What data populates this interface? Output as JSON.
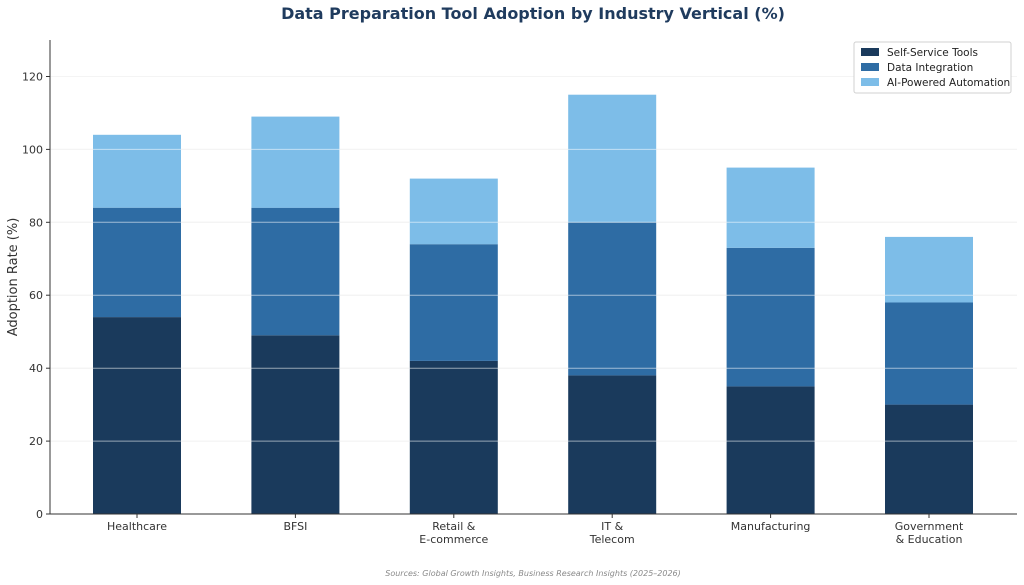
{
  "chart_data": {
    "type": "bar",
    "stacked": true,
    "title": "Data Preparation Tool Adoption by Industry Vertical (%)",
    "ylabel": "Adoption Rate (%)",
    "xlabel": "",
    "categories": [
      [
        "Healthcare"
      ],
      [
        "BFSI"
      ],
      [
        "Retail &",
        "E-commerce"
      ],
      [
        "IT &",
        "Telecom"
      ],
      [
        "Manufacturing"
      ],
      [
        "Government",
        "& Education"
      ]
    ],
    "series": [
      {
        "name": "Self-Service Tools",
        "color": "#1a3a5c",
        "values": [
          54,
          49,
          42,
          38,
          35,
          30
        ]
      },
      {
        "name": "Data Integration",
        "color": "#2e6ca4",
        "values": [
          30,
          35,
          32,
          42,
          38,
          28
        ]
      },
      {
        "name": "AI-Powered Automation",
        "color": "#7dbde8",
        "values": [
          20,
          25,
          18,
          35,
          22,
          18
        ]
      }
    ],
    "ylim": [
      0,
      130
    ],
    "yticks": [
      0,
      20,
      40,
      60,
      80,
      100,
      120
    ],
    "grid": true,
    "legend_position": "top-right",
    "source": "Sources: Global Growth Insights, Business Research Insights (2025–2026)"
  }
}
